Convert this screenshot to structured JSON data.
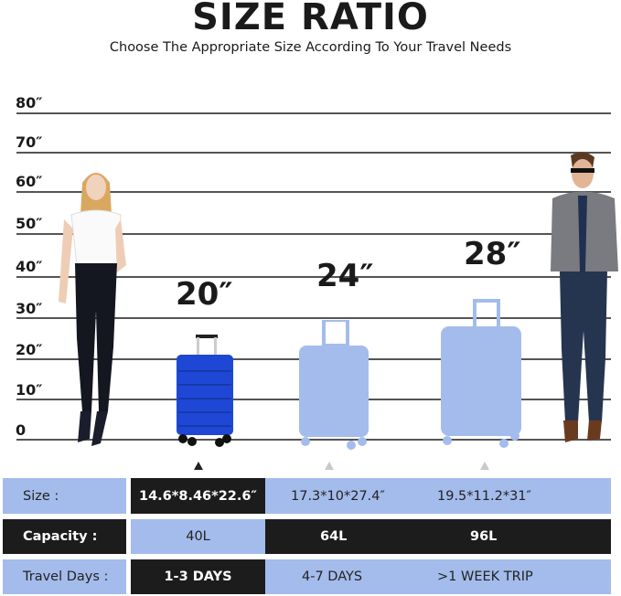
{
  "header": {
    "title": "SIZE RATIO",
    "subtitle": "Choose The Appropriate Size According To Your Travel Needs"
  },
  "scale": {
    "ticks": [
      "80″",
      "70″",
      "60″",
      "50″",
      "40″",
      "30″",
      "20″",
      "10″",
      "0"
    ]
  },
  "suitcases": [
    {
      "label": "20″",
      "color": "#1f47d6",
      "selected": true
    },
    {
      "label": "24″",
      "color": "#a4bcec",
      "selected": false
    },
    {
      "label": "28″",
      "color": "#a4bcec",
      "selected": false
    }
  ],
  "table": {
    "rows": [
      {
        "label": "Size :",
        "values": [
          "14.6*8.46*22.6″",
          "17.3*10*27.4″",
          "19.5*11.2*31″"
        ]
      },
      {
        "label": "Capacity :",
        "values": [
          "40L",
          "64L",
          "96L"
        ]
      },
      {
        "label": "Travel Days :",
        "values": [
          "1-3 DAYS",
          "4-7 DAYS",
          ">1 WEEK TRIP"
        ]
      }
    ]
  },
  "colors": {
    "light": "#a4bcec",
    "dark": "#1c1c1c",
    "blue": "#1f47d6"
  }
}
